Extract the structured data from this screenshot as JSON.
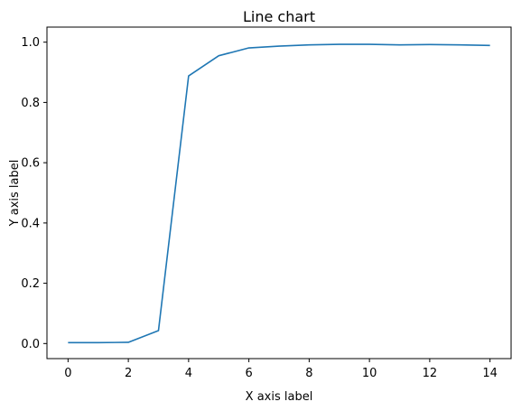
{
  "chart_data": {
    "type": "line",
    "title": "Line chart",
    "xlabel": "X axis label",
    "ylabel": "Y axis label",
    "xlim": [
      -0.7,
      14.7
    ],
    "ylim": [
      -0.05,
      1.05
    ],
    "x_ticks": [
      0,
      2,
      4,
      6,
      8,
      10,
      12,
      14
    ],
    "y_ticks": [
      0.0,
      0.2,
      0.4,
      0.6,
      0.8,
      1.0
    ],
    "y_tick_labels": [
      "0.0",
      "0.2",
      "0.4",
      "0.6",
      "0.8",
      "1.0"
    ],
    "grid": false,
    "legend": "none",
    "series": [
      {
        "color": "#1f77b4",
        "x": [
          0,
          1,
          2,
          3,
          4,
          5,
          6,
          7,
          8,
          9,
          10,
          11,
          12,
          13,
          14
        ],
        "values": [
          0.003,
          0.003,
          0.004,
          0.043,
          0.888,
          0.955,
          0.981,
          0.987,
          0.991,
          0.993,
          0.993,
          0.991,
          0.992,
          0.991,
          0.989
        ]
      }
    ]
  }
}
